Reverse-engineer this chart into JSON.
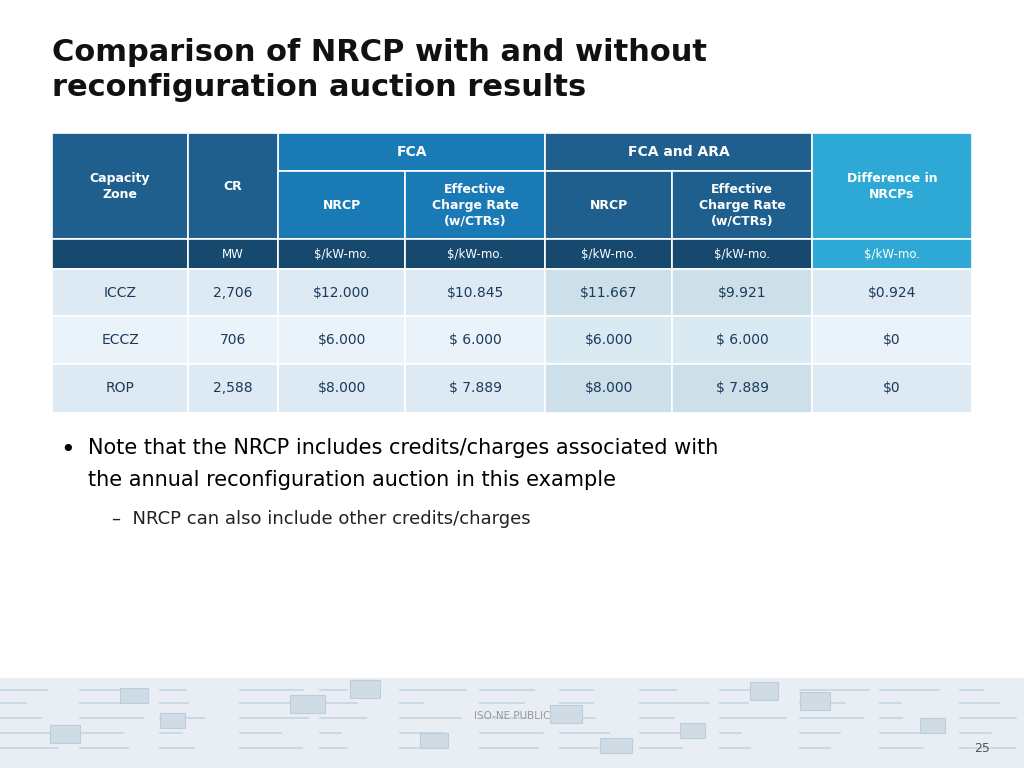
{
  "title_line1": "Comparison of NRCP with and without",
  "title_line2": "reconfiguration auction results",
  "title_fontsize": 22,
  "bg_color": "#ffffff",
  "header_dark_blue": "#1e5f8e",
  "header_medium_blue": "#1a7ab5",
  "header_bright_blue": "#2ea8d5",
  "units_row_bg": "#17496e",
  "col_span1_header": "FCA",
  "col_span2_header": "FCA and ARA",
  "col_headers": [
    "Capacity\nZone",
    "CR",
    "NRCP",
    "Effective\nCharge Rate\n(w/CTRs)",
    "NRCP",
    "Effective\nCharge Rate\n(w/CTRs)",
    "Difference in\nNRCPs"
  ],
  "units_row": [
    "",
    "MW",
    "$/kW-mo.",
    "$/kW-mo.",
    "$/kW-mo.",
    "$/kW-mo.",
    "$/kW-mo."
  ],
  "data_rows": [
    [
      "ICCZ",
      "2,706",
      "$12.000",
      "$10.845",
      "$11.667",
      "$9.921",
      "$0.924"
    ],
    [
      "ECCZ",
      "706",
      "$6.000",
      "$ 6.000",
      "$6.000",
      "$ 6.000",
      "$0"
    ],
    [
      "ROP",
      "2,588",
      "$8.000",
      "$ 7.889",
      "$8.000",
      "$ 7.889",
      "$0"
    ]
  ],
  "row_colors": [
    "#deeaf3",
    "#e9f3f9",
    "#deeaf3"
  ],
  "row_colors_right": [
    "#cddfe8",
    "#d9eaf3",
    "#cddfe8"
  ],
  "bullet_text1": "Note that the NRCP includes credits/charges associated with",
  "bullet_text2": "the annual reconfiguration auction in this example",
  "sub_bullet": "NRCP can also include other credits/charges",
  "footer_text": "ISO-NE PUBLIC",
  "page_number": "25",
  "text_fontsize": 15,
  "sub_text_fontsize": 13,
  "table_header_fontsize": 9,
  "table_data_fontsize": 10,
  "units_fontsize": 8.5
}
